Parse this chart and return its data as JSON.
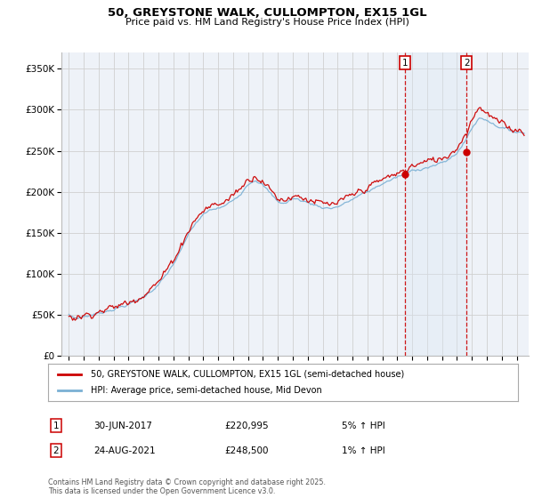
{
  "title": "50, GREYSTONE WALK, CULLOMPTON, EX15 1GL",
  "subtitle": "Price paid vs. HM Land Registry's House Price Index (HPI)",
  "legend_line1": "50, GREYSTONE WALK, CULLOMPTON, EX15 1GL (semi-detached house)",
  "legend_line2": "HPI: Average price, semi-detached house, Mid Devon",
  "red_color": "#cc0000",
  "blue_color": "#7ab0d4",
  "annotation1_date": "30-JUN-2017",
  "annotation1_price": "£220,995",
  "annotation1_hpi": "5% ↑ HPI",
  "annotation2_date": "24-AUG-2021",
  "annotation2_price": "£248,500",
  "annotation2_hpi": "1% ↑ HPI",
  "vline1_x": 2017.5,
  "vline2_x": 2021.65,
  "marker1_y": 221000,
  "marker2_y": 248500,
  "ylim_min": 0,
  "ylim_max": 370000,
  "xlim_min": 1994.5,
  "xlim_max": 2025.8,
  "footer": "Contains HM Land Registry data © Crown copyright and database right 2025.\nThis data is licensed under the Open Government Licence v3.0.",
  "yticks": [
    0,
    50000,
    100000,
    150000,
    200000,
    250000,
    300000,
    350000
  ],
  "ytick_labels": [
    "£0",
    "£50K",
    "£100K",
    "£150K",
    "£200K",
    "£250K",
    "£300K",
    "£350K"
  ],
  "xticks": [
    1995,
    1996,
    1997,
    1998,
    1999,
    2000,
    2001,
    2002,
    2003,
    2004,
    2005,
    2006,
    2007,
    2008,
    2009,
    2010,
    2011,
    2012,
    2013,
    2014,
    2015,
    2016,
    2017,
    2018,
    2019,
    2020,
    2021,
    2022,
    2023,
    2024,
    2025
  ],
  "shade_color": "#dce8f5",
  "grid_color": "#d0d0d0",
  "bg_color": "#eef2f8"
}
